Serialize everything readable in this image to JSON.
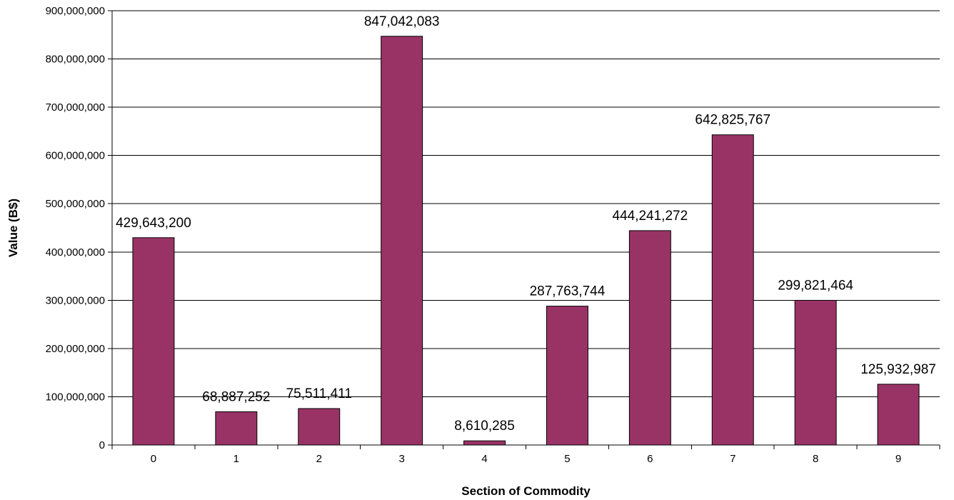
{
  "chart_data": {
    "type": "bar",
    "title": "",
    "xlabel": "Section of Commodity",
    "ylabel": "Value (B$)",
    "categories": [
      "0",
      "1",
      "2",
      "3",
      "4",
      "5",
      "6",
      "7",
      "8",
      "9"
    ],
    "values": [
      429643200,
      68887252,
      75511411,
      847042083,
      8610285,
      287763744,
      444241272,
      642825767,
      299821464,
      125932987
    ],
    "data_labels": [
      "429,643,200",
      "68,887,252",
      "75,511,411",
      "847,042,083",
      "8,610,285",
      "287,763,744",
      "444,241,272",
      "642,825,767",
      "299,821,464",
      "125,932,987"
    ],
    "ylim": [
      0,
      900000000
    ],
    "yticks": [
      0,
      100000000,
      200000000,
      300000000,
      400000000,
      500000000,
      600000000,
      700000000,
      800000000,
      900000000
    ],
    "ytick_labels": [
      "0",
      "100,000,000",
      "200,000,000",
      "300,000,000",
      "400,000,000",
      "500,000,000",
      "600,000,000",
      "700,000,000",
      "800,000,000",
      "900,000,000"
    ],
    "grid": "horizontal",
    "legend": "none",
    "colors": {
      "bar_fill": "#993366",
      "bar_stroke": "#000000",
      "grid": "#000000",
      "axis": "#000000"
    }
  }
}
